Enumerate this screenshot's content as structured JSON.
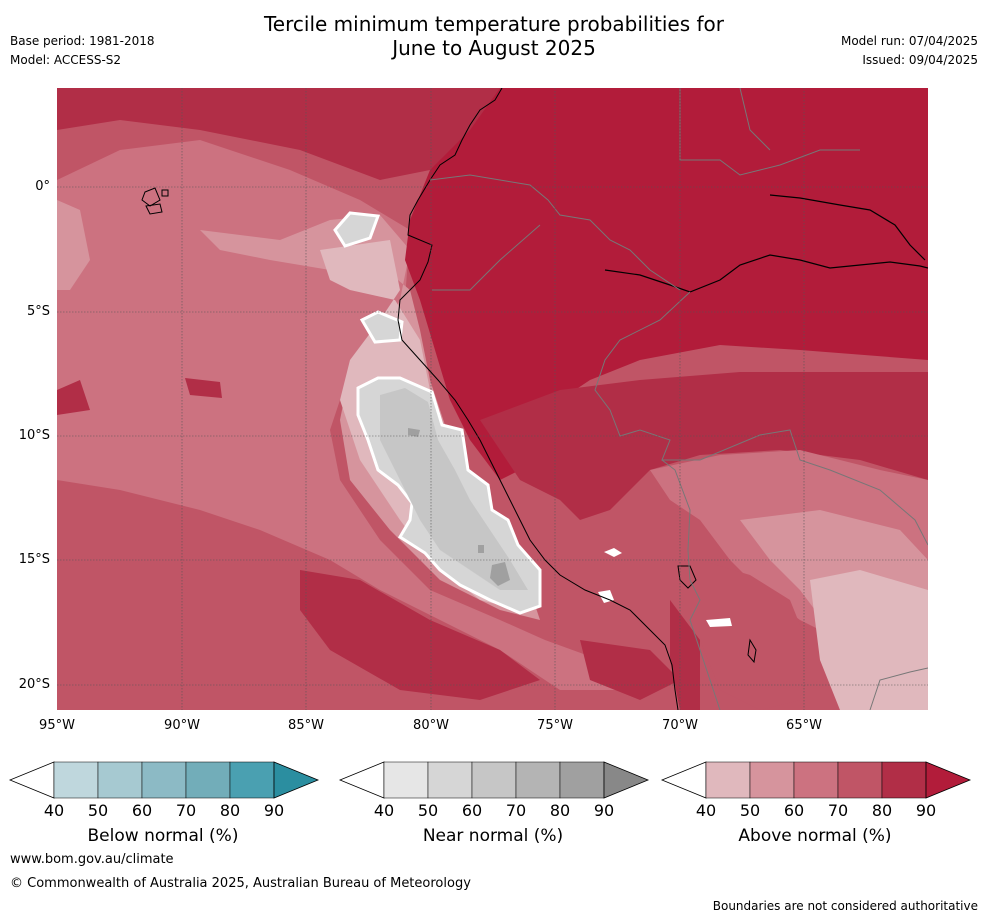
{
  "title_line1": "Tercile minimum temperature probabilities for",
  "title_line2": "June to August 2025",
  "base_period": "Base period: 1981-2018",
  "model": "Model: ACCESS-S2",
  "model_run": "Model run: 07/04/2025",
  "issued": "Issued: 09/04/2025",
  "lat_labels": [
    "0°",
    "5°S",
    "10°S",
    "15°S",
    "20°S"
  ],
  "lon_labels": [
    "95°W",
    "90°W",
    "85°W",
    "80°W",
    "75°W",
    "70°W",
    "65°W"
  ],
  "colorbars": [
    {
      "title": "Below normal (%)",
      "ticks": [
        "40",
        "50",
        "60",
        "70",
        "80",
        "90"
      ],
      "colors": [
        "#bfd7dd",
        "#a6c9d1",
        "#8cbac5",
        "#72adb9",
        "#4aa0b1",
        "#2b8ea0"
      ]
    },
    {
      "title": "Near normal (%)",
      "ticks": [
        "40",
        "50",
        "60",
        "70",
        "80",
        "90"
      ],
      "colors": [
        "#e6e6e6",
        "#d6d6d6",
        "#c6c6c6",
        "#b4b4b4",
        "#a0a0a0",
        "#888888"
      ]
    },
    {
      "title": "Above normal (%)",
      "ticks": [
        "40",
        "50",
        "60",
        "70",
        "80",
        "90"
      ],
      "colors": [
        "#e0b8bd",
        "#d6949d",
        "#cc7280",
        "#c05566",
        "#b12e47",
        "#b21c3a"
      ]
    }
  ],
  "website": "www.bom.gov.au/climate",
  "copyright": "© Commonwealth of Australia 2025, Australian Bureau of Meteorology",
  "disclaimer": "Boundaries are not considered authoritative"
}
